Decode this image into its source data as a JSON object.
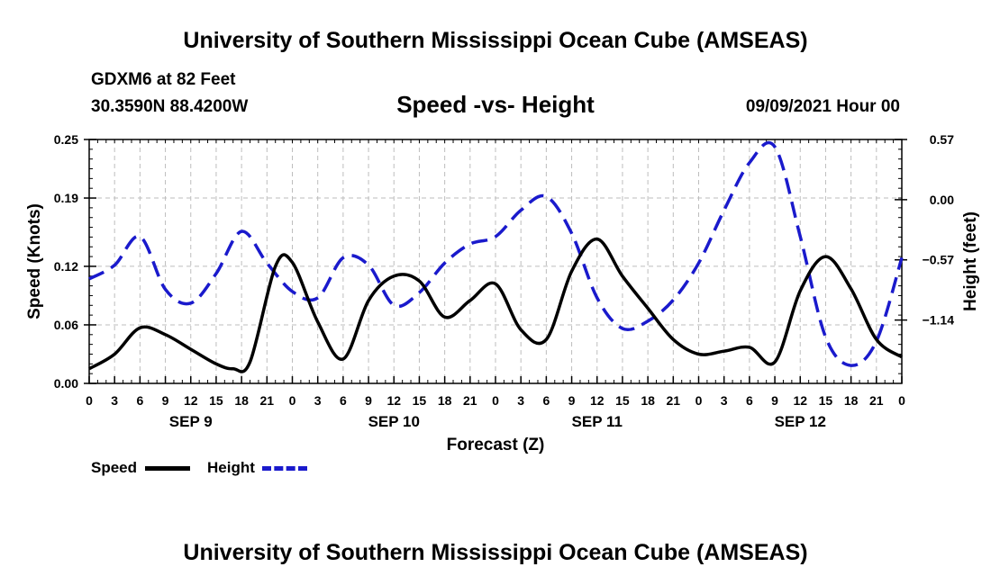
{
  "header": {
    "title": "University of Southern Mississippi Ocean Cube (AMSEAS)",
    "station": "GDXM6 at 82 Feet",
    "coords": "30.3590N  88.4200W",
    "subtitle": "Speed -vs- Height",
    "datetime": "09/09/2021 Hour 00"
  },
  "footer": {
    "title": "University of Southern Mississippi Ocean Cube (AMSEAS)"
  },
  "legend": {
    "speed_label": "Speed",
    "height_label": "Height",
    "speed_color": "#000000",
    "height_color": "#1a1acc"
  },
  "chart_data": {
    "type": "line",
    "title": "Speed -vs- Height",
    "xlabel": "Forecast (Z)",
    "ylabel": "Speed (Knots)",
    "y2label": "Height (feet)",
    "xlim": [
      0,
      96
    ],
    "ylim": [
      0,
      0.25
    ],
    "y2lim": [
      -1.74,
      0.57
    ],
    "x_tick_values": [
      0,
      3,
      6,
      9,
      12,
      15,
      18,
      21,
      24,
      27,
      30,
      33,
      36,
      39,
      42,
      45,
      48,
      51,
      54,
      57,
      60,
      63,
      66,
      69,
      72,
      75,
      78,
      81,
      84,
      87,
      90,
      93,
      96
    ],
    "x_tick_labels": [
      "0",
      "3",
      "6",
      "9",
      "12",
      "15",
      "18",
      "21",
      "0",
      "3",
      "6",
      "9",
      "12",
      "15",
      "18",
      "21",
      "0",
      "3",
      "6",
      "9",
      "12",
      "15",
      "18",
      "21",
      "0",
      "3",
      "6",
      "9",
      "12",
      "15",
      "18",
      "21",
      "0"
    ],
    "day_labels": [
      {
        "x": 12,
        "label": "SEP 9"
      },
      {
        "x": 36,
        "label": "SEP 10"
      },
      {
        "x": 60,
        "label": "SEP 11"
      },
      {
        "x": 84,
        "label": "SEP 12"
      }
    ],
    "y_ticks": [
      {
        "value": 0.0,
        "label": "0.00"
      },
      {
        "value": 0.06,
        "label": "0.06"
      },
      {
        "value": 0.12,
        "label": "0.12"
      },
      {
        "value": 0.19,
        "label": "0.19"
      },
      {
        "value": 0.25,
        "label": "0.25"
      }
    ],
    "y2_ticks": [
      {
        "value": 0.57,
        "label": "0.57"
      },
      {
        "value": 0.0,
        "label": "0.00"
      },
      {
        "value": -0.57,
        "label": "−0.57"
      },
      {
        "value": -1.14,
        "label": "−1.14"
      }
    ],
    "series": [
      {
        "name": "Speed",
        "axis": "left",
        "style": "solid",
        "color": "#000000",
        "x": [
          0,
          3,
          6,
          9,
          12,
          15,
          17,
          19,
          22,
          24,
          27,
          30,
          33,
          36,
          39,
          42,
          45,
          48,
          51,
          54,
          57,
          60,
          63,
          66,
          69,
          72,
          75,
          78,
          81,
          84,
          87,
          90,
          93,
          96
        ],
        "values": [
          0.015,
          0.03,
          0.057,
          0.05,
          0.035,
          0.02,
          0.015,
          0.022,
          0.12,
          0.124,
          0.063,
          0.025,
          0.085,
          0.11,
          0.105,
          0.068,
          0.085,
          0.102,
          0.055,
          0.045,
          0.115,
          0.148,
          0.11,
          0.077,
          0.045,
          0.03,
          0.033,
          0.037,
          0.022,
          0.095,
          0.13,
          0.097,
          0.045,
          0.027
        ]
      },
      {
        "name": "Height",
        "axis": "right",
        "style": "dashed",
        "color": "#1a1acc",
        "x": [
          0,
          3,
          6,
          9,
          12,
          15,
          18,
          21,
          24,
          27,
          30,
          33,
          36,
          39,
          42,
          45,
          48,
          51,
          54,
          57,
          60,
          63,
          66,
          69,
          72,
          75,
          78,
          81,
          84,
          87,
          90,
          93,
          96
        ],
        "values": [
          -0.75,
          -0.62,
          -0.35,
          -0.85,
          -0.98,
          -0.7,
          -0.3,
          -0.6,
          -0.87,
          -0.93,
          -0.55,
          -0.62,
          -1.0,
          -0.88,
          -0.6,
          -0.42,
          -0.35,
          -0.1,
          0.03,
          -0.32,
          -0.93,
          -1.22,
          -1.15,
          -0.95,
          -0.6,
          -0.1,
          0.35,
          0.5,
          -0.35,
          -1.3,
          -1.57,
          -1.34,
          -0.55
        ]
      }
    ]
  }
}
